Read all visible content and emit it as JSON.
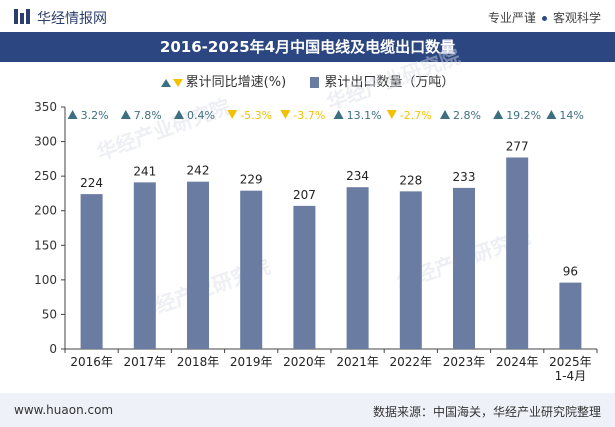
{
  "header": {
    "site_name": "华经情报网",
    "slogan_left": "专业严谨",
    "slogan_right": "客观科学"
  },
  "chart_title": "2016-2025年4月中国电线及电缆出口数量",
  "legend": {
    "growth_label": "累计同比增速(%)",
    "volume_label": "累计出口数量（万吨）"
  },
  "footer": {
    "website": "www.huaon.com",
    "source": "数据来源：中国海关，华经产业研究院整理"
  },
  "watermark": "华经产业研究院",
  "colors": {
    "bar": "#6b7ca3",
    "up": "#3d6f7f",
    "down": "#f2c200",
    "title_bg": "#2b4680"
  },
  "chart_data": {
    "type": "bar",
    "title": "2016-2025年4月中国电线及电缆出口数量",
    "categories": [
      "2016年",
      "2017年",
      "2018年",
      "2019年",
      "2020年",
      "2021年",
      "2022年",
      "2023年",
      "2024年",
      "2025年\n1-4月"
    ],
    "series": [
      {
        "name": "累计出口数量（万吨）",
        "values": [
          224,
          241,
          242,
          229,
          207,
          234,
          228,
          233,
          277,
          96
        ]
      },
      {
        "name": "累计同比增速(%)",
        "values": [
          3.2,
          7.8,
          0.4,
          -5.3,
          -3.7,
          13.1,
          -2.7,
          2.8,
          19.2,
          14
        ]
      }
    ],
    "growth_labels": [
      "3.2%",
      "7.8%",
      "0.4%",
      "-5.3%",
      "-3.7%",
      "13.1%",
      "-2.7%",
      "2.8%",
      "19.2%",
      "14%"
    ],
    "y_ticks": [
      0,
      50,
      100,
      150,
      200,
      250,
      300,
      350
    ],
    "ylim": [
      0,
      350
    ],
    "grid": false,
    "legend_position": "top-center"
  }
}
